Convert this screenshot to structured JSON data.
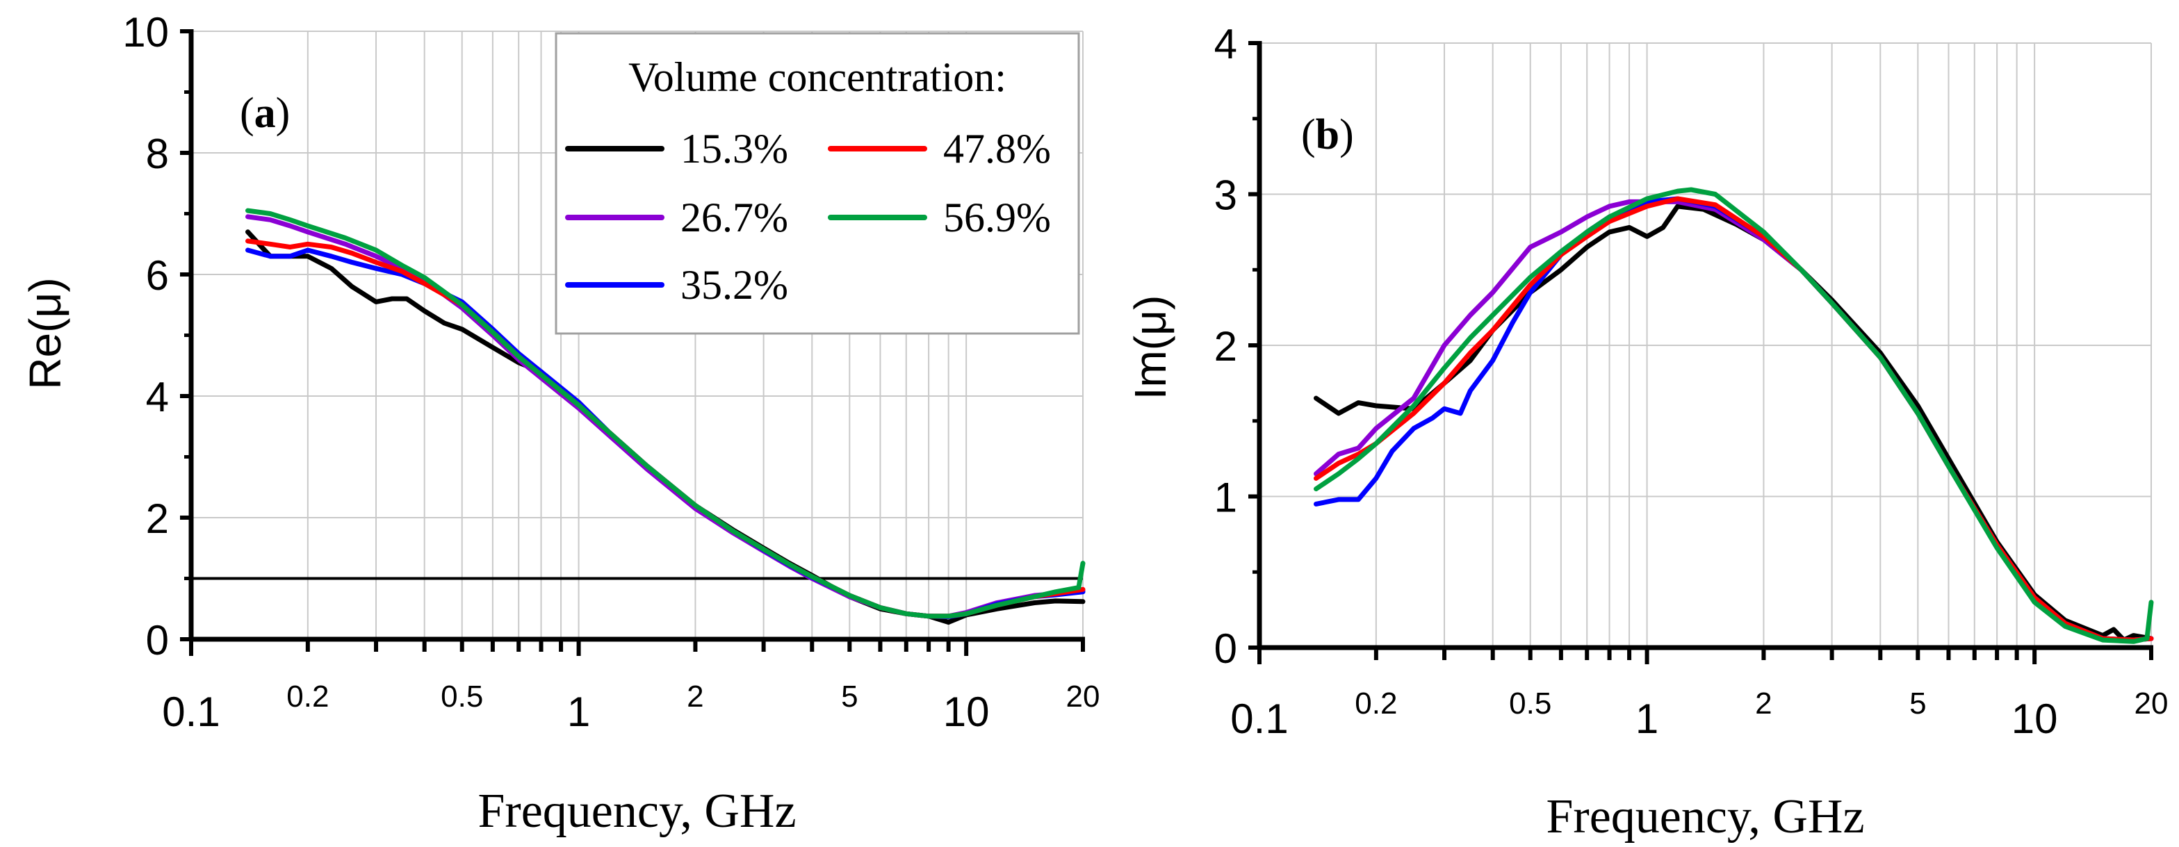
{
  "chart_data": [
    {
      "type": "line",
      "panel": "a",
      "panel_tag_bold": "a",
      "panel_tag_open": "(",
      "panel_tag_close": ")",
      "x_scale": "log",
      "xlim": [
        0.1,
        20
      ],
      "ylim": [
        0,
        10
      ],
      "xlabel": "Frequency, GHz",
      "ylabel": "Re(μ)",
      "x_ticks_major": [
        {
          "value": 0.1,
          "label": "0.1"
        },
        {
          "value": 1,
          "label": "1"
        },
        {
          "value": 10,
          "label": "10"
        }
      ],
      "x_ticks_minor": [
        {
          "value": 0.2,
          "label": "0.2"
        },
        {
          "value": 0.5,
          "label": "0.5"
        },
        {
          "value": 2,
          "label": "2"
        },
        {
          "value": 5,
          "label": "5"
        },
        {
          "value": 20,
          "label": "20"
        }
      ],
      "y_ticks": [
        {
          "value": 0,
          "label": "0"
        },
        {
          "value": 2,
          "label": "2"
        },
        {
          "value": 4,
          "label": "4"
        },
        {
          "value": 6,
          "label": "6"
        },
        {
          "value": 8,
          "label": "8"
        },
        {
          "value": 10,
          "label": "10"
        }
      ],
      "reference_line": {
        "y": 1
      },
      "legend": {
        "title": "Volume concentration:",
        "placement": "top-right"
      },
      "series": [
        {
          "name": "15.3%",
          "color": "#000000",
          "x": [
            0.14,
            0.16,
            0.18,
            0.2,
            0.23,
            0.26,
            0.3,
            0.33,
            0.36,
            0.4,
            0.45,
            0.5,
            0.6,
            0.7,
            0.8,
            1,
            1.2,
            1.5,
            2,
            2.5,
            3,
            3.5,
            4,
            5,
            6,
            7,
            8,
            9,
            10,
            12,
            15,
            17,
            20
          ],
          "y": [
            6.7,
            6.3,
            6.3,
            6.3,
            6.1,
            5.8,
            5.55,
            5.6,
            5.6,
            5.4,
            5.2,
            5.1,
            4.8,
            4.55,
            4.4,
            3.85,
            3.4,
            2.85,
            2.2,
            1.8,
            1.5,
            1.25,
            1.05,
            0.7,
            0.5,
            0.42,
            0.38,
            0.28,
            0.4,
            0.5,
            0.6,
            0.63,
            0.62
          ]
        },
        {
          "name": "26.7%",
          "color": "#8b00d4",
          "x": [
            0.14,
            0.16,
            0.18,
            0.2,
            0.25,
            0.3,
            0.35,
            0.4,
            0.5,
            0.6,
            0.7,
            0.8,
            1,
            1.2,
            1.5,
            2,
            2.5,
            3,
            3.5,
            4,
            5,
            6,
            7,
            8,
            9,
            10,
            12,
            15,
            17,
            20
          ],
          "y": [
            6.95,
            6.9,
            6.8,
            6.7,
            6.5,
            6.3,
            6.1,
            5.9,
            5.45,
            5.0,
            4.6,
            4.3,
            3.8,
            3.35,
            2.8,
            2.15,
            1.75,
            1.45,
            1.2,
            1.0,
            0.7,
            0.52,
            0.42,
            0.38,
            0.38,
            0.44,
            0.6,
            0.72,
            0.75,
            0.8
          ]
        },
        {
          "name": "35.2%",
          "color": "#0000ff",
          "x": [
            0.14,
            0.16,
            0.18,
            0.2,
            0.23,
            0.26,
            0.3,
            0.35,
            0.4,
            0.5,
            0.6,
            0.7,
            0.8,
            1,
            1.2,
            1.5,
            2,
            2.5,
            3,
            3.5,
            4,
            5,
            6,
            7,
            8,
            9,
            10,
            12,
            15,
            17,
            20
          ],
          "y": [
            6.4,
            6.3,
            6.3,
            6.4,
            6.3,
            6.2,
            6.1,
            6.0,
            5.85,
            5.55,
            5.1,
            4.7,
            4.4,
            3.9,
            3.4,
            2.85,
            2.2,
            1.78,
            1.47,
            1.22,
            1.02,
            0.72,
            0.52,
            0.42,
            0.38,
            0.37,
            0.42,
            0.58,
            0.7,
            0.73,
            0.78
          ]
        },
        {
          "name": "47.8%",
          "color": "#ff0000",
          "x": [
            0.14,
            0.16,
            0.18,
            0.2,
            0.23,
            0.26,
            0.3,
            0.35,
            0.4,
            0.5,
            0.6,
            0.7,
            0.8,
            1,
            1.2,
            1.5,
            2,
            2.5,
            3,
            3.5,
            4,
            5,
            6,
            7,
            8,
            9,
            10,
            12,
            15,
            17,
            20
          ],
          "y": [
            6.55,
            6.5,
            6.45,
            6.5,
            6.45,
            6.35,
            6.2,
            6.05,
            5.85,
            5.5,
            5.05,
            4.65,
            4.35,
            3.85,
            3.4,
            2.85,
            2.2,
            1.78,
            1.48,
            1.23,
            1.03,
            0.72,
            0.52,
            0.42,
            0.38,
            0.38,
            0.42,
            0.56,
            0.7,
            0.75,
            0.82
          ]
        },
        {
          "name": "56.9%",
          "color": "#00a040",
          "x": [
            0.14,
            0.16,
            0.18,
            0.2,
            0.25,
            0.3,
            0.35,
            0.4,
            0.5,
            0.6,
            0.7,
            0.8,
            1,
            1.2,
            1.5,
            2,
            2.5,
            3,
            3.5,
            4,
            5,
            6,
            7,
            8,
            9,
            10,
            12,
            15,
            17,
            19.5,
            20
          ],
          "y": [
            7.05,
            7.0,
            6.9,
            6.8,
            6.6,
            6.4,
            6.15,
            5.95,
            5.5,
            5.05,
            4.65,
            4.35,
            3.85,
            3.4,
            2.85,
            2.2,
            1.78,
            1.48,
            1.23,
            1.03,
            0.72,
            0.52,
            0.42,
            0.38,
            0.38,
            0.42,
            0.56,
            0.7,
            0.78,
            0.85,
            1.25
          ]
        }
      ]
    },
    {
      "type": "line",
      "panel": "b",
      "panel_tag_bold": "b",
      "panel_tag_open": "(",
      "panel_tag_close": ")",
      "x_scale": "log",
      "xlim": [
        0.1,
        20
      ],
      "ylim": [
        0,
        4
      ],
      "xlabel": "Frequency, GHz",
      "ylabel": "Im(μ)",
      "x_ticks_major": [
        {
          "value": 0.1,
          "label": "0.1"
        },
        {
          "value": 1,
          "label": "1"
        },
        {
          "value": 10,
          "label": "10"
        }
      ],
      "x_ticks_minor": [
        {
          "value": 0.2,
          "label": "0.2"
        },
        {
          "value": 0.5,
          "label": "0.5"
        },
        {
          "value": 2,
          "label": "2"
        },
        {
          "value": 5,
          "label": "5"
        },
        {
          "value": 20,
          "label": "20"
        }
      ],
      "y_ticks": [
        {
          "value": 0,
          "label": "0"
        },
        {
          "value": 1,
          "label": "1"
        },
        {
          "value": 2,
          "label": "2"
        },
        {
          "value": 3,
          "label": "3"
        },
        {
          "value": 4,
          "label": "4"
        }
      ],
      "series": [
        {
          "name": "15.3%",
          "color": "#000000",
          "x": [
            0.14,
            0.16,
            0.18,
            0.2,
            0.25,
            0.3,
            0.35,
            0.4,
            0.5,
            0.6,
            0.7,
            0.8,
            0.9,
            1.0,
            1.1,
            1.2,
            1.4,
            1.7,
            2,
            2.5,
            3,
            4,
            5,
            6,
            8,
            10,
            12,
            15,
            16,
            17,
            18,
            20
          ],
          "y": [
            1.65,
            1.55,
            1.62,
            1.6,
            1.58,
            1.75,
            1.9,
            2.1,
            2.35,
            2.5,
            2.65,
            2.75,
            2.78,
            2.72,
            2.78,
            2.92,
            2.9,
            2.8,
            2.7,
            2.5,
            2.3,
            1.95,
            1.6,
            1.25,
            0.7,
            0.35,
            0.18,
            0.08,
            0.12,
            0.05,
            0.08,
            0.06
          ]
        },
        {
          "name": "26.7%",
          "color": "#8b00d4",
          "x": [
            0.14,
            0.16,
            0.18,
            0.2,
            0.25,
            0.3,
            0.35,
            0.4,
            0.5,
            0.6,
            0.7,
            0.8,
            0.9,
            1.0,
            1.2,
            1.5,
            2,
            2.5,
            3,
            4,
            5,
            6,
            8,
            10,
            12,
            15,
            18,
            20
          ],
          "y": [
            1.15,
            1.28,
            1.32,
            1.45,
            1.65,
            2.0,
            2.2,
            2.35,
            2.65,
            2.75,
            2.85,
            2.92,
            2.95,
            2.95,
            2.95,
            2.9,
            2.7,
            2.5,
            2.28,
            1.92,
            1.55,
            1.2,
            0.68,
            0.33,
            0.16,
            0.06,
            0.05,
            0.06
          ]
        },
        {
          "name": "35.2%",
          "color": "#0000ff",
          "x": [
            0.14,
            0.16,
            0.18,
            0.2,
            0.22,
            0.25,
            0.28,
            0.3,
            0.33,
            0.35,
            0.4,
            0.45,
            0.5,
            0.6,
            0.7,
            0.8,
            1.0,
            1.2,
            1.5,
            2,
            2.5,
            3,
            4,
            5,
            6,
            8,
            10,
            12,
            15,
            18,
            20
          ],
          "y": [
            0.95,
            0.98,
            0.98,
            1.12,
            1.3,
            1.45,
            1.52,
            1.58,
            1.55,
            1.7,
            1.9,
            2.15,
            2.35,
            2.6,
            2.75,
            2.85,
            2.95,
            2.97,
            2.92,
            2.72,
            2.5,
            2.28,
            1.92,
            1.55,
            1.2,
            0.68,
            0.33,
            0.16,
            0.06,
            0.05,
            0.06
          ]
        },
        {
          "name": "47.8%",
          "color": "#ff0000",
          "x": [
            0.14,
            0.16,
            0.18,
            0.2,
            0.25,
            0.3,
            0.35,
            0.4,
            0.5,
            0.6,
            0.7,
            0.8,
            1.0,
            1.2,
            1.5,
            2,
            2.5,
            3,
            4,
            5,
            6,
            8,
            10,
            12,
            15,
            18,
            20
          ],
          "y": [
            1.12,
            1.22,
            1.28,
            1.35,
            1.55,
            1.75,
            1.95,
            2.1,
            2.4,
            2.6,
            2.72,
            2.82,
            2.92,
            2.97,
            2.93,
            2.72,
            2.5,
            2.28,
            1.92,
            1.55,
            1.2,
            0.68,
            0.33,
            0.16,
            0.06,
            0.05,
            0.06
          ]
        },
        {
          "name": "56.9%",
          "color": "#00a040",
          "x": [
            0.14,
            0.16,
            0.18,
            0.2,
            0.25,
            0.3,
            0.35,
            0.4,
            0.5,
            0.6,
            0.7,
            0.8,
            1.0,
            1.2,
            1.3,
            1.5,
            2,
            2.5,
            3,
            4,
            5,
            6,
            8,
            10,
            12,
            15,
            18,
            19.5,
            20
          ],
          "y": [
            1.05,
            1.15,
            1.25,
            1.35,
            1.6,
            1.85,
            2.05,
            2.2,
            2.45,
            2.62,
            2.75,
            2.85,
            2.97,
            3.02,
            3.03,
            3.0,
            2.75,
            2.5,
            2.28,
            1.92,
            1.55,
            1.2,
            0.66,
            0.3,
            0.14,
            0.05,
            0.04,
            0.06,
            0.3
          ]
        }
      ]
    }
  ]
}
